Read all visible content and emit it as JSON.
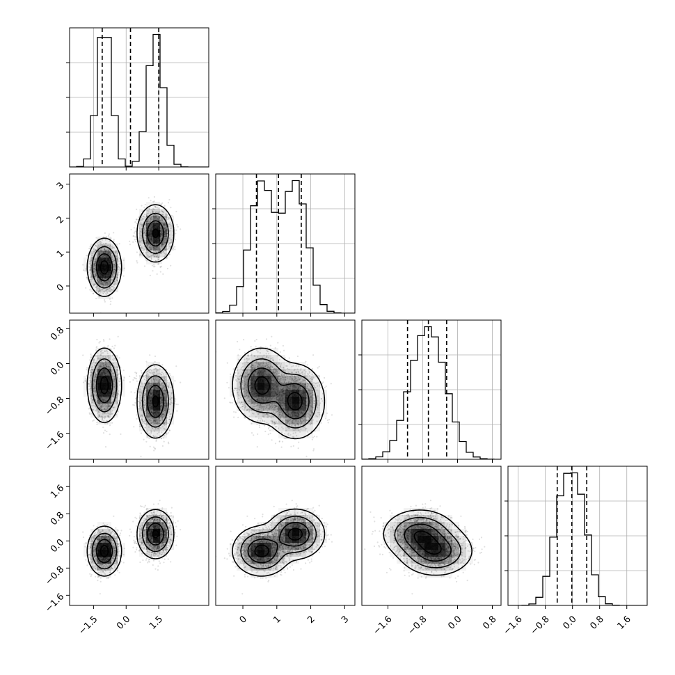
{
  "chart_data": {
    "type": "corner",
    "n_params": 4,
    "title": "",
    "axis_labels": [
      "",
      "",
      "",
      ""
    ],
    "ranges": [
      [
        -2.6,
        3.8
      ],
      [
        -0.8,
        3.3
      ],
      [
        -2.2,
        1.0
      ],
      [
        -1.9,
        2.2
      ]
    ],
    "ticks": [
      [
        -1.5,
        0.0,
        1.5
      ],
      [
        0,
        1,
        2,
        3
      ],
      [
        -1.6,
        -0.8,
        0.0,
        0.8
      ],
      [
        -1.6,
        -0.8,
        0.0,
        0.8,
        1.6
      ]
    ],
    "tick_labels": [
      [
        "−1.5",
        "0.0",
        "1.5"
      ],
      [
        "0",
        "1",
        "2",
        "3"
      ],
      [
        "−1.6",
        "−0.8",
        "0.0",
        "0.8"
      ],
      [
        "−1.6",
        "−0.8",
        "0.0",
        "0.8",
        "1.6"
      ]
    ],
    "quantiles": [
      [
        -1.1,
        0.2,
        1.5
      ],
      [
        0.4,
        1.05,
        1.72
      ],
      [
        -1.15,
        -0.67,
        -0.25
      ],
      [
        -0.45,
        -0.02,
        0.42
      ]
    ],
    "components": [
      {
        "weight": 0.5,
        "mean": [
          -1.0,
          0.55,
          -0.5,
          -0.3
        ],
        "sd": [
          0.32,
          0.35,
          0.35,
          0.3
        ]
      },
      {
        "weight": 0.5,
        "mean": [
          1.35,
          1.55,
          -0.87,
          0.2
        ],
        "sd": [
          0.35,
          0.35,
          0.35,
          0.3
        ]
      }
    ],
    "grid": true,
    "colors": {
      "ink": "#000000",
      "grid": "#b0b0b0",
      "density": "#000000"
    }
  }
}
